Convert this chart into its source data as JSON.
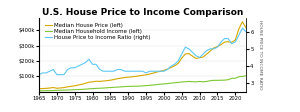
{
  "title": "U.S. House Price to Income Comparison",
  "title_fontsize": 6.5,
  "legend_entries": [
    "Median House Price (left)",
    "Median Household Income (left)",
    "House Price to Income Ratio (right)"
  ],
  "years": [
    1965,
    1966,
    1967,
    1968,
    1969,
    1970,
    1971,
    1972,
    1973,
    1974,
    1975,
    1976,
    1977,
    1978,
    1979,
    1980,
    1981,
    1982,
    1983,
    1984,
    1985,
    1986,
    1987,
    1988,
    1989,
    1990,
    1991,
    1992,
    1993,
    1994,
    1995,
    1996,
    1997,
    1998,
    1999,
    2000,
    2001,
    2002,
    2003,
    2004,
    2005,
    2006,
    2007,
    2008,
    2009,
    2010,
    2011,
    2012,
    2013,
    2014,
    2015,
    2016,
    2017,
    2018,
    2019,
    2020,
    2021,
    2022,
    2023
  ],
  "house_price": [
    20000,
    21500,
    22700,
    24800,
    27900,
    23400,
    25200,
    27600,
    32500,
    35900,
    39300,
    44200,
    48800,
    55700,
    62900,
    64600,
    68900,
    67800,
    70300,
    72400,
    75500,
    80300,
    85500,
    89300,
    93100,
    95500,
    97100,
    100000,
    103700,
    107200,
    110500,
    115800,
    121800,
    128400,
    133900,
    139000,
    147800,
    158300,
    168900,
    185200,
    219000,
    246500,
    247900,
    232100,
    216700,
    221800,
    226000,
    245200,
    265500,
    285400,
    294200,
    306700,
    323100,
    325000,
    321500,
    336900,
    408800,
    454900,
    416100
  ],
  "household_income": [
    6900,
    7200,
    7500,
    7700,
    8300,
    9870,
    10285,
    11116,
    12051,
    12902,
    13719,
    14958,
    16009,
    17640,
    19587,
    21023,
    22388,
    23433,
    24580,
    26433,
    27735,
    29458,
    30970,
    32191,
    34213,
    35353,
    35939,
    36573,
    36959,
    38782,
    40611,
    42300,
    44568,
    46737,
    49692,
    51539,
    53714,
    56644,
    59067,
    61294,
    63944,
    65557,
    67609,
    65844,
    65000,
    67530,
    65019,
    67609,
    72641,
    74822,
    74640,
    75235,
    76157,
    78646,
    87864,
    88008,
    97962,
    100012,
    105000
  ],
  "ratio": [
    3.5,
    3.6,
    3.6,
    3.7,
    3.8,
    3.5,
    3.5,
    3.5,
    3.8,
    3.9,
    3.9,
    4.0,
    4.1,
    4.2,
    4.4,
    4.1,
    4.1,
    3.8,
    3.7,
    3.7,
    3.7,
    3.7,
    3.8,
    3.8,
    3.7,
    3.7,
    3.7,
    3.7,
    3.7,
    3.7,
    3.6,
    3.7,
    3.7,
    3.7,
    3.7,
    3.7,
    3.8,
    4.0,
    4.1,
    4.3,
    4.7,
    5.1,
    5.0,
    4.8,
    4.6,
    4.5,
    4.7,
    4.9,
    5.0,
    5.0,
    5.1,
    5.4,
    5.6,
    5.6,
    5.3,
    5.4,
    5.8,
    6.2,
    6.0
  ],
  "house_price_color": "#d4a800",
  "income_color": "#7dc832",
  "ratio_color": "#5bc8f5",
  "background_color": "#ffffff",
  "left_ylim": [
    0,
    480000
  ],
  "right_ylim": [
    2.5,
    6.8
  ],
  "left_yticks": [
    100000,
    200000,
    300000,
    400000
  ],
  "right_yticks": [
    3,
    4,
    5,
    6
  ],
  "left_ytick_labels": [
    "$100k",
    "$200k",
    "$300k",
    "$400k"
  ],
  "right_ytick_labels": [
    "3",
    "4",
    "5",
    "6"
  ],
  "right_axis_label": "HOUSE PRICE TO INCOME RATIO",
  "legend_fontsize": 4.0,
  "tick_fontsize": 3.8,
  "linewidth": 0.8,
  "year_ticks": [
    1965,
    1970,
    1975,
    1980,
    1985,
    1990,
    1995,
    2000,
    2005,
    2010,
    2015,
    2020
  ]
}
